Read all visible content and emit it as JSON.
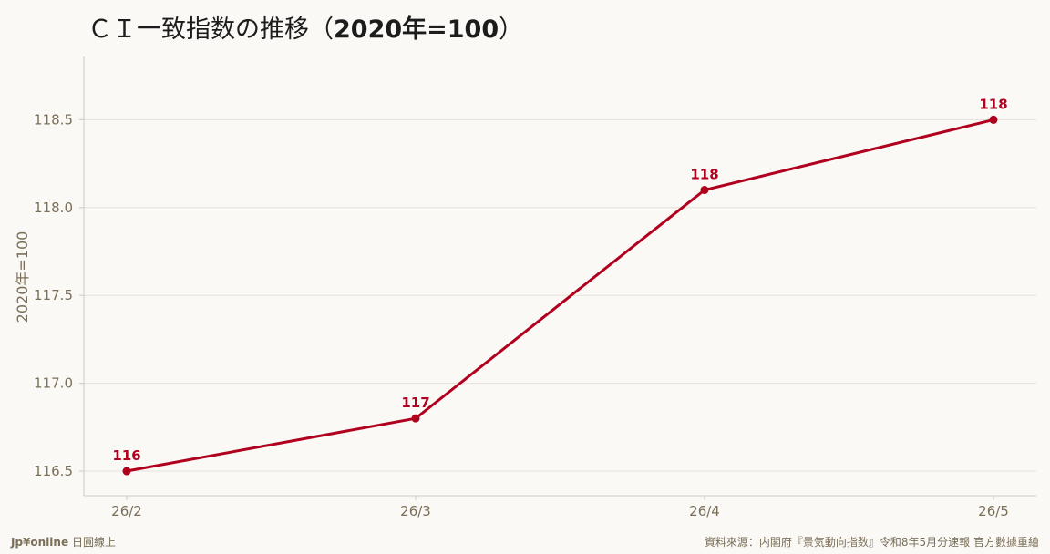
{
  "title": {
    "prefix": "ＣＩ一致指数の推移（",
    "bold": "2020年=100",
    "suffix": "）"
  },
  "chart_data": {
    "type": "line",
    "x": [
      "26/2",
      "26/3",
      "26/4",
      "26/5"
    ],
    "series": [
      {
        "values": [
          116.5,
          116.8,
          118.1,
          118.5
        ],
        "labels": [
          "116",
          "117",
          "118",
          "118"
        ],
        "color": "#b0001e"
      }
    ],
    "ylabel": "2020年=100",
    "yticks": [
      116.5,
      117.0,
      117.5,
      118.0,
      118.5
    ],
    "ytick_labels": [
      "116.5",
      "117.0",
      "117.5",
      "118.0",
      "118.5"
    ],
    "ylim": [
      116.36,
      118.86
    ],
    "grid": true
  },
  "footer": {
    "brand": "Jp¥online",
    "brand_sub": "日圓線上",
    "source": "資料來源：内閣府『景気動向指数』令和8年5月分速報 官方數據重繪"
  }
}
